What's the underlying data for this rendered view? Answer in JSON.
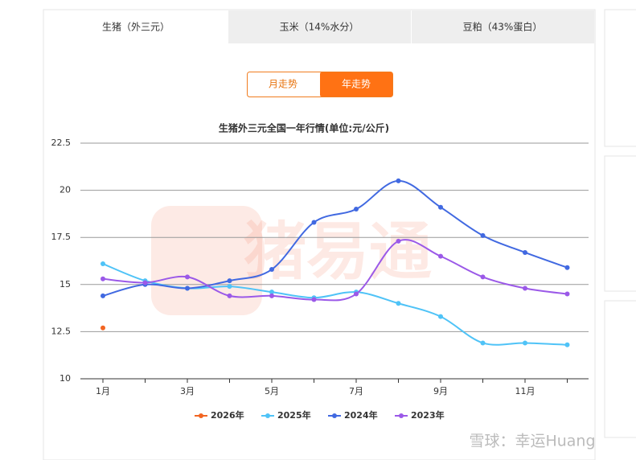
{
  "tabs": [
    "生猪（外三元）",
    "玉米（14%水分）",
    "豆粕（43%蛋白）"
  ],
  "buttons": [
    "月走势",
    "年走势"
  ],
  "watermarks": [
    "猪易通",
    "雪球：幸运Huang"
  ],
  "chart_data": {
    "type": "line",
    "title": "生猪外三元全国一年行情(单位:元/公斤)",
    "categories": [
      "1月",
      null,
      "3月",
      null,
      "5月",
      null,
      "7月",
      null,
      "9月",
      null,
      "11月",
      null
    ],
    "ylim": [
      10,
      22.5
    ],
    "yticks": [
      10,
      12.5,
      15,
      17.5,
      20,
      22.5
    ],
    "grid": true,
    "series": [
      {
        "name": "2026年",
        "color": "#f26522",
        "values": [
          12.7,
          null,
          null,
          null,
          null,
          null,
          null,
          null,
          null,
          null,
          null,
          null
        ]
      },
      {
        "name": "2025年",
        "color": "#4fc3f7",
        "values": [
          16.1,
          15.2,
          14.8,
          14.9,
          14.6,
          14.3,
          14.6,
          14.0,
          13.3,
          11.9,
          11.9,
          11.8
        ]
      },
      {
        "name": "2024年",
        "color": "#4169e1",
        "values": [
          14.4,
          15.0,
          14.8,
          15.2,
          15.8,
          18.3,
          19.0,
          20.5,
          19.1,
          17.6,
          16.7,
          15.9
        ]
      },
      {
        "name": "2023年",
        "color": "#9b59e8",
        "values": [
          15.3,
          15.1,
          15.4,
          14.4,
          14.4,
          14.2,
          14.5,
          17.3,
          16.5,
          15.4,
          14.8,
          14.5
        ]
      }
    ]
  }
}
